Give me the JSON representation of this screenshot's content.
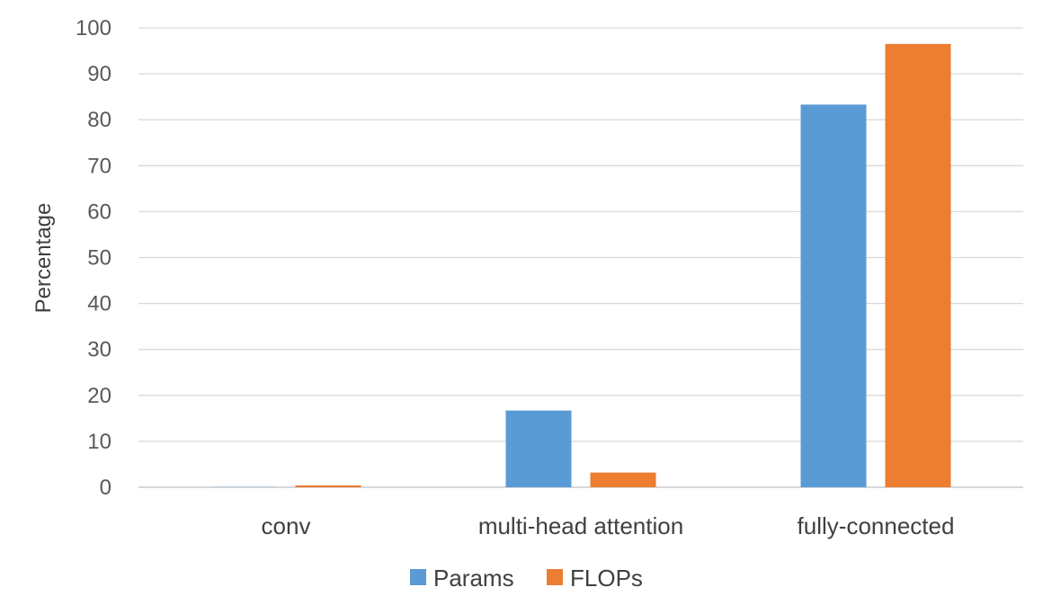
{
  "chart_data": {
    "type": "bar",
    "title": "",
    "xlabel": "",
    "ylabel": "Percentage",
    "categories": [
      "conv",
      "multi-head attention",
      "fully-connected"
    ],
    "series": [
      {
        "name": "Params",
        "color": "#5b9bd5",
        "values": [
          0.05,
          16.7,
          83.3
        ]
      },
      {
        "name": "FLOPs",
        "color": "#ed7d31",
        "values": [
          0.4,
          3.2,
          96.5
        ]
      }
    ],
    "ylim": [
      0,
      100
    ],
    "yticks": [
      0,
      10,
      20,
      30,
      40,
      50,
      60,
      70,
      80,
      90,
      100
    ],
    "grid": true,
    "legend_position": "bottom"
  }
}
